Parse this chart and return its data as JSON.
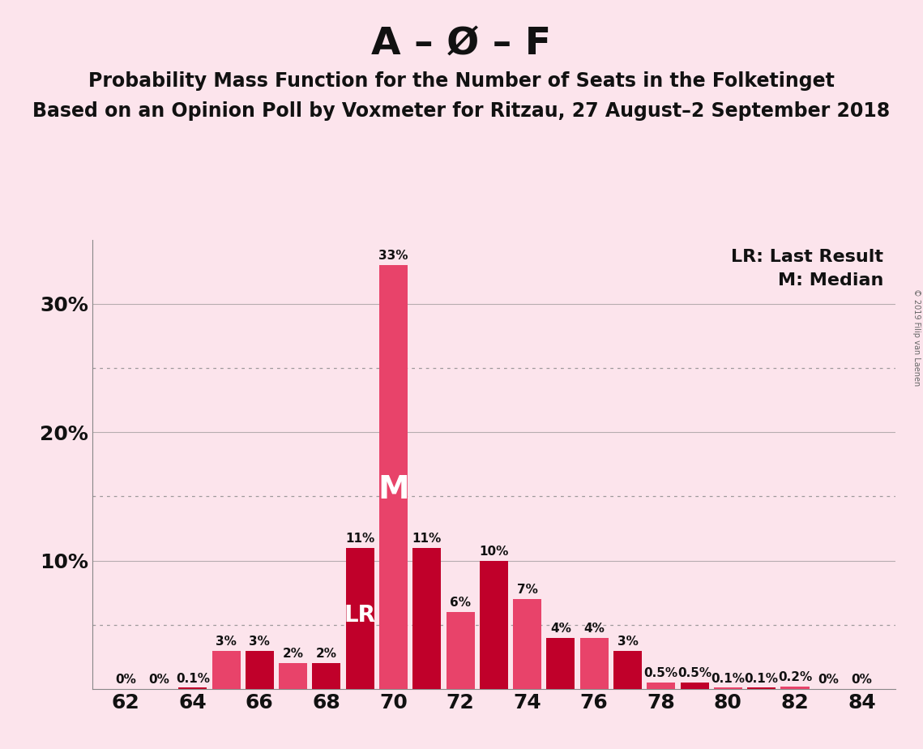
{
  "title1": "A – Ø – F",
  "title2": "Probability Mass Function for the Number of Seats in the Folketinget",
  "title3": "Based on an Opinion Poll by Voxmeter for Ritzau, 27 August–2 September 2018",
  "copyright": "© 2019 Filip van Laenen",
  "background_color": "#fce4ec",
  "plot_bg_color": "#fce4ec",
  "bar_color_dark": "#c0002a",
  "bar_color_light": "#e8436a",
  "seats": [
    62,
    63,
    64,
    65,
    66,
    67,
    68,
    69,
    70,
    71,
    72,
    73,
    74,
    75,
    76,
    77,
    78,
    79,
    80,
    81,
    82,
    83,
    84
  ],
  "values": [
    0.0,
    0.0,
    0.1,
    3.0,
    3.0,
    2.0,
    2.0,
    11.0,
    33.0,
    11.0,
    6.0,
    10.0,
    7.0,
    4.0,
    4.0,
    3.0,
    0.5,
    0.5,
    0.1,
    0.1,
    0.2,
    0.0,
    0.0
  ],
  "bar_colors": [
    "#c0002a",
    "#e8436a",
    "#c0002a",
    "#e8436a",
    "#c0002a",
    "#e8436a",
    "#c0002a",
    "#c0002a",
    "#e8436a",
    "#c0002a",
    "#e8436a",
    "#c0002a",
    "#e8436a",
    "#c0002a",
    "#e8436a",
    "#c0002a",
    "#e8436a",
    "#c0002a",
    "#e8436a",
    "#c0002a",
    "#e8436a",
    "#c0002a",
    "#e8436a"
  ],
  "median_seat": 70,
  "lr_seat": 69,
  "label_positions": {
    "62": "0%",
    "63": "0%",
    "64": "0.1%",
    "65": "3%",
    "66": "3%",
    "67": "2%",
    "68": "2%",
    "69": "11%",
    "70": "33%",
    "71": "11%",
    "72": "6%",
    "73": "10%",
    "74": "7%",
    "75": "4%",
    "76": "4%",
    "77": "3%",
    "78": "0.5%",
    "79": "0.5%",
    "80": "0.1%",
    "81": "0.1%",
    "82": "0.2%",
    "83": "0%",
    "84": "0%"
  },
  "ylim": [
    0,
    35
  ],
  "xlim": [
    61.0,
    85.0
  ],
  "xticks": [
    62,
    64,
    66,
    68,
    70,
    72,
    74,
    76,
    78,
    80,
    82,
    84
  ],
  "ytick_vals": [
    0,
    10,
    20,
    30
  ],
  "ytick_labels": [
    "",
    "10%",
    "20%",
    "30%"
  ],
  "grid_solid": [
    10,
    20,
    30
  ],
  "grid_dotted": [
    5,
    15,
    25
  ],
  "legend_text": "LR: Last Result\nM: Median",
  "title1_fontsize": 34,
  "title2_fontsize": 17,
  "title3_fontsize": 17,
  "bar_label_fontsize": 11,
  "axis_tick_fontsize": 18,
  "legend_fontsize": 16,
  "M_fontsize": 28,
  "LR_fontsize": 20
}
